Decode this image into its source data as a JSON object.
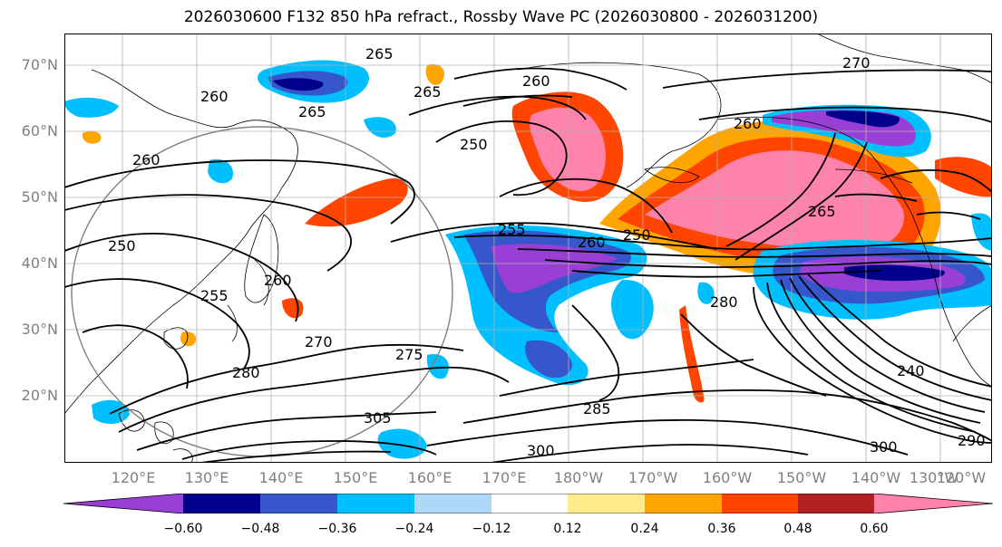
{
  "title": "2026030600 F132 850 hPa refract., Rossby Wave PC (2026030800 - 2026031200)",
  "lat_labels": [
    "70°N",
    "60°N",
    "50°N",
    "40°N",
    "30°N",
    "20°N"
  ],
  "lon_labels": [
    "120°E",
    "130°E",
    "140°E",
    "150°E",
    "160°E",
    "170°E",
    "180°W",
    "170°W",
    "160°W",
    "150°W",
    "140°W",
    "130°W",
    "120°W"
  ],
  "contour_labels": [
    "265",
    "270",
    "260",
    "265",
    "265",
    "260",
    "250",
    "255",
    "260",
    "250",
    "265",
    "280",
    "260",
    "250",
    "260",
    "255",
    "270",
    "275",
    "280",
    "285",
    "300",
    "305",
    "300",
    "240",
    "260",
    "290"
  ],
  "colorbar": {
    "ticks": [
      "−0.60",
      "−0.48",
      "−0.36",
      "−0.24",
      "−0.12",
      "0.12",
      "0.24",
      "0.36",
      "0.48",
      "0.60"
    ],
    "colors": [
      "#9a3fd6",
      "#00008b",
      "#3656cc",
      "#00bfff",
      "#add8f7",
      "#ffffff",
      "#ffeb8a",
      "#ffa500",
      "#ff4500",
      "#b22222",
      "#ff82ab"
    ]
  }
}
